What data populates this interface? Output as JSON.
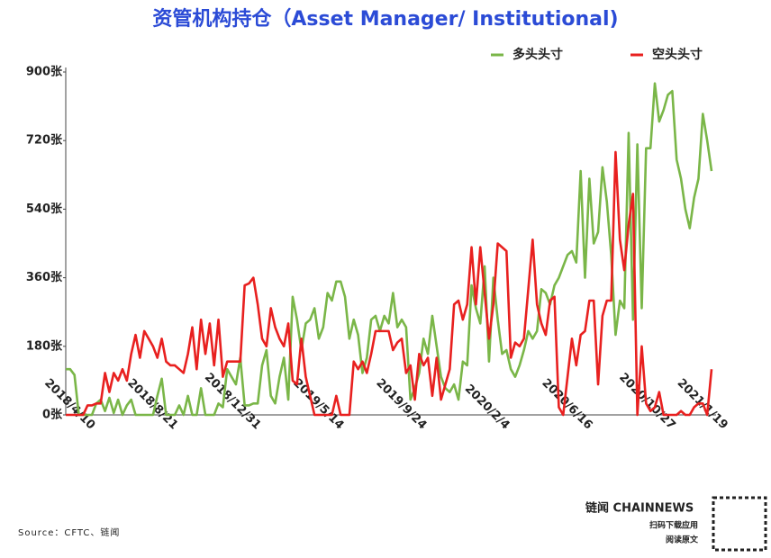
{
  "chart_data": {
    "type": "line",
    "title": "资管机构持仓（Asset Manager/ Institutional)",
    "annotations": [
      "Source：CFTC、链闻",
      "链闻 CHAINNEWS",
      "扫码下载应用",
      "阅读原文"
    ],
    "categories": [
      "2018/4/10",
      null,
      null,
      null,
      null,
      null,
      null,
      null,
      null,
      null,
      null,
      null,
      null,
      null,
      null,
      null,
      null,
      null,
      null,
      "2018/8/21",
      null,
      null,
      null,
      null,
      null,
      null,
      null,
      null,
      null,
      null,
      null,
      null,
      null,
      null,
      null,
      null,
      null,
      null,
      "2018/12/31",
      null,
      null,
      null,
      null,
      null,
      null,
      null,
      null,
      null,
      null,
      null,
      null,
      null,
      null,
      null,
      null,
      null,
      null,
      "2019/5/14",
      null,
      null,
      null,
      null,
      null,
      null,
      null,
      null,
      null,
      null,
      null,
      null,
      null,
      null,
      null,
      null,
      null,
      null,
      "2019/9/24",
      null,
      null,
      null,
      null,
      null,
      null,
      null,
      null,
      null,
      null,
      null,
      null,
      null,
      null,
      null,
      null,
      null,
      null,
      "2020/2/4",
      null,
      null,
      null,
      null,
      null,
      null,
      null,
      null,
      null,
      null,
      null,
      null,
      null,
      null,
      null,
      null,
      null,
      null,
      "2020/6/16",
      null,
      null,
      null,
      null,
      null,
      null,
      null,
      null,
      null,
      null,
      null,
      null,
      null,
      null,
      null,
      null,
      null,
      null,
      "2020/10/27",
      null,
      null,
      null,
      null,
      null,
      null,
      null,
      null,
      null,
      null,
      null,
      "2021/1/19",
      null,
      null,
      null
    ],
    "series": [
      {
        "name": "多头头寸",
        "color": "#7ab648",
        "values": [
          120,
          120,
          105,
          0,
          0,
          0,
          0,
          30,
          40,
          10,
          45,
          5,
          40,
          0,
          25,
          40,
          0,
          0,
          0,
          0,
          0,
          50,
          95,
          0,
          0,
          0,
          25,
          0,
          50,
          0,
          0,
          70,
          0,
          0,
          0,
          30,
          20,
          120,
          100,
          80,
          150,
          25,
          25,
          30,
          30,
          130,
          170,
          50,
          30,
          100,
          150,
          40,
          310,
          250,
          170,
          240,
          250,
          280,
          200,
          230,
          320,
          300,
          350,
          350,
          310,
          200,
          250,
          210,
          110,
          150,
          250,
          260,
          220,
          260,
          240,
          320,
          230,
          250,
          230,
          40,
          70,
          110,
          200,
          160,
          260,
          180,
          100,
          70,
          60,
          80,
          40,
          140,
          130,
          340,
          280,
          240,
          390,
          140,
          360,
          250,
          160,
          170,
          120,
          100,
          130,
          170,
          220,
          200,
          220,
          330,
          320,
          290,
          340,
          360,
          390,
          420,
          430,
          400,
          640,
          360,
          620,
          450,
          480,
          650,
          560,
          420,
          210,
          300,
          280,
          740,
          250,
          710,
          280,
          700,
          700,
          870,
          770,
          800,
          840,
          850,
          670,
          620,
          540,
          490,
          570,
          620,
          790,
          720,
          640
        ]
      },
      {
        "name": "空头头寸",
        "color": "#e8201f",
        "values": [
          0,
          0,
          0,
          0,
          0,
          25,
          25,
          30,
          30,
          110,
          60,
          110,
          90,
          120,
          90,
          160,
          210,
          150,
          220,
          200,
          180,
          150,
          200,
          140,
          130,
          130,
          120,
          110,
          160,
          230,
          120,
          250,
          160,
          240,
          130,
          250,
          100,
          140,
          140,
          140,
          140,
          340,
          345,
          360,
          290,
          200,
          180,
          280,
          230,
          200,
          180,
          240,
          90,
          80,
          200,
          100,
          50,
          0,
          0,
          0,
          0,
          0,
          50,
          0,
          0,
          0,
          140,
          120,
          140,
          110,
          160,
          220,
          220,
          220,
          220,
          170,
          190,
          200,
          110,
          130,
          40,
          160,
          130,
          150,
          50,
          150,
          40,
          80,
          120,
          290,
          300,
          250,
          290,
          440,
          290,
          440,
          320,
          200,
          290,
          450,
          440,
          430,
          150,
          190,
          180,
          200,
          330,
          460,
          290,
          240,
          210,
          300,
          310,
          20,
          0,
          100,
          200,
          130,
          210,
          220,
          300,
          300,
          80,
          260,
          300,
          300,
          690,
          460,
          380,
          500,
          580,
          0,
          180,
          30,
          10,
          20,
          60,
          0,
          0,
          0,
          0,
          10,
          0,
          0,
          20,
          30,
          30,
          0,
          120
        ]
      }
    ],
    "ylim": [
      0,
      900
    ],
    "yticks": [
      {
        "value": 0,
        "label": "0张"
      },
      {
        "value": 180,
        "label": "180张"
      },
      {
        "value": 360,
        "label": "360张"
      },
      {
        "value": 540,
        "label": "540张"
      },
      {
        "value": 720,
        "label": "720张"
      },
      {
        "value": 900,
        "label": "900张"
      }
    ],
    "grid": false,
    "legend": "top-right"
  }
}
